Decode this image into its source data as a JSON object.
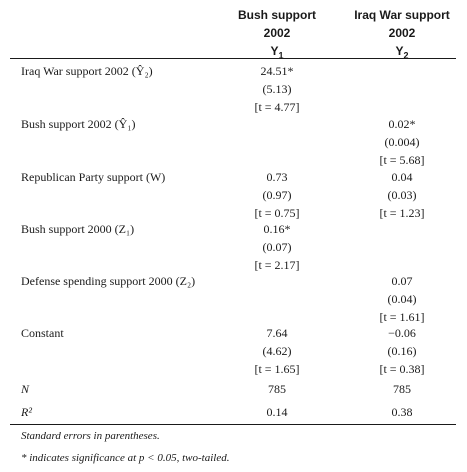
{
  "columns": [
    {
      "title_line1": "Bush support",
      "title_line2": "2002",
      "var_letter": "Y",
      "var_sub": "1"
    },
    {
      "title_line1": "Iraq War support",
      "title_line2": "2002",
      "var_letter": "Y",
      "var_sub": "2"
    }
  ],
  "rows": [
    {
      "label": "Iraq War support 2002 (Ŷ₂)",
      "c1": [
        "24.51*",
        "(5.13)",
        "[t = 4.77]"
      ],
      "c2": [
        "",
        "",
        ""
      ]
    },
    {
      "label": "Bush support 2002 (Ŷ₁)",
      "c1": [
        "",
        "",
        ""
      ],
      "c2": [
        "0.02*",
        "(0.004)",
        "[t = 5.68]"
      ]
    },
    {
      "label": "Republican Party support (W)",
      "c1": [
        "0.73",
        "(0.97)",
        "[t = 0.75]"
      ],
      "c2": [
        "0.04",
        "(0.03)",
        "[t = 1.23]"
      ]
    },
    {
      "label": "Bush support 2000 (Z₁)",
      "c1": [
        "0.16*",
        "(0.07)",
        "[t = 2.17]"
      ],
      "c2": [
        "",
        "",
        ""
      ]
    },
    {
      "label": "Defense spending support 2000 (Z₂)",
      "c1": [
        "",
        "",
        ""
      ],
      "c2": [
        "0.07",
        "(0.04)",
        "[t = 1.61]"
      ]
    },
    {
      "label": "Constant",
      "c1": [
        "7.64",
        "(4.62)",
        "[t = 1.65]"
      ],
      "c2": [
        "−0.06",
        "(0.16)",
        "[t = 0.38]"
      ]
    }
  ],
  "stats": [
    {
      "label": "N",
      "c1": "785",
      "c2": "785"
    },
    {
      "label": "R²",
      "c1": "0.14",
      "c2": "0.38"
    }
  ],
  "notes": [
    "Standard errors in parentheses.",
    "* indicates significance at p < 0.05, two-tailed."
  ]
}
